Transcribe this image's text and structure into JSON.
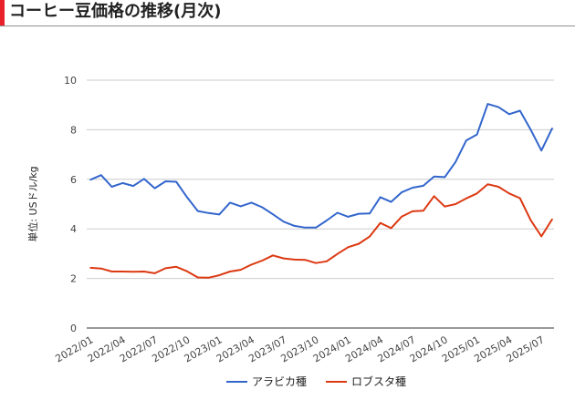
{
  "header": {
    "title": "コーヒー豆価格の推移(月次)"
  },
  "chart_data": {
    "type": "line",
    "title": "コーヒー豆価格の推移(月次)",
    "ylabel": "単位: USドル/kg",
    "xlabel": "",
    "ylim": [
      0,
      10
    ],
    "yticks": [
      0,
      2,
      4,
      6,
      8,
      10
    ],
    "grid": true,
    "legend": "bottom",
    "x": [
      "2022/01",
      "2022/02",
      "2022/03",
      "2022/04",
      "2022/05",
      "2022/06",
      "2022/07",
      "2022/08",
      "2022/09",
      "2022/10",
      "2022/11",
      "2022/12",
      "2023/01",
      "2023/02",
      "2023/03",
      "2023/04",
      "2023/05",
      "2023/06",
      "2023/07",
      "2023/08",
      "2023/09",
      "2023/10",
      "2023/11",
      "2023/12",
      "2024/01",
      "2024/02",
      "2024/03",
      "2024/04",
      "2024/05",
      "2024/06",
      "2024/07",
      "2024/08",
      "2024/09",
      "2024/10",
      "2024/11",
      "2024/12",
      "2025/01",
      "2025/02",
      "2025/03",
      "2025/04",
      "2025/05",
      "2025/06",
      "2025/07",
      "2025/08"
    ],
    "x_tick_labels": [
      "2022/01",
      "2022/04",
      "2022/07",
      "2022/10",
      "2023/01",
      "2023/04",
      "2023/07",
      "2023/10",
      "2024/01",
      "2024/04",
      "2024/07",
      "2024/10",
      "2025/01",
      "2025/04",
      "2025/07"
    ],
    "series": [
      {
        "name": "アラビカ種",
        "color": "#3366cc",
        "values": [
          5.98,
          6.17,
          5.7,
          5.85,
          5.73,
          6.02,
          5.64,
          5.92,
          5.9,
          5.28,
          4.72,
          4.64,
          4.58,
          5.06,
          4.91,
          5.06,
          4.87,
          4.59,
          4.29,
          4.12,
          4.05,
          4.05,
          4.34,
          4.65,
          4.49,
          4.61,
          4.62,
          5.28,
          5.09,
          5.48,
          5.66,
          5.74,
          6.11,
          6.09,
          6.7,
          7.57,
          7.81,
          9.04,
          8.91,
          8.63,
          8.77,
          8.0,
          7.16,
          8.06
        ]
      },
      {
        "name": "ロブスタ種",
        "color": "#dc3912",
        "values": [
          2.43,
          2.4,
          2.28,
          2.28,
          2.27,
          2.28,
          2.21,
          2.41,
          2.47,
          2.29,
          2.04,
          2.03,
          2.13,
          2.28,
          2.35,
          2.56,
          2.72,
          2.93,
          2.81,
          2.76,
          2.75,
          2.62,
          2.69,
          2.99,
          3.26,
          3.4,
          3.69,
          4.24,
          4.03,
          4.5,
          4.71,
          4.73,
          5.32,
          4.9,
          5.0,
          5.23,
          5.43,
          5.8,
          5.7,
          5.43,
          5.24,
          4.35,
          3.7,
          4.39
        ]
      }
    ]
  }
}
